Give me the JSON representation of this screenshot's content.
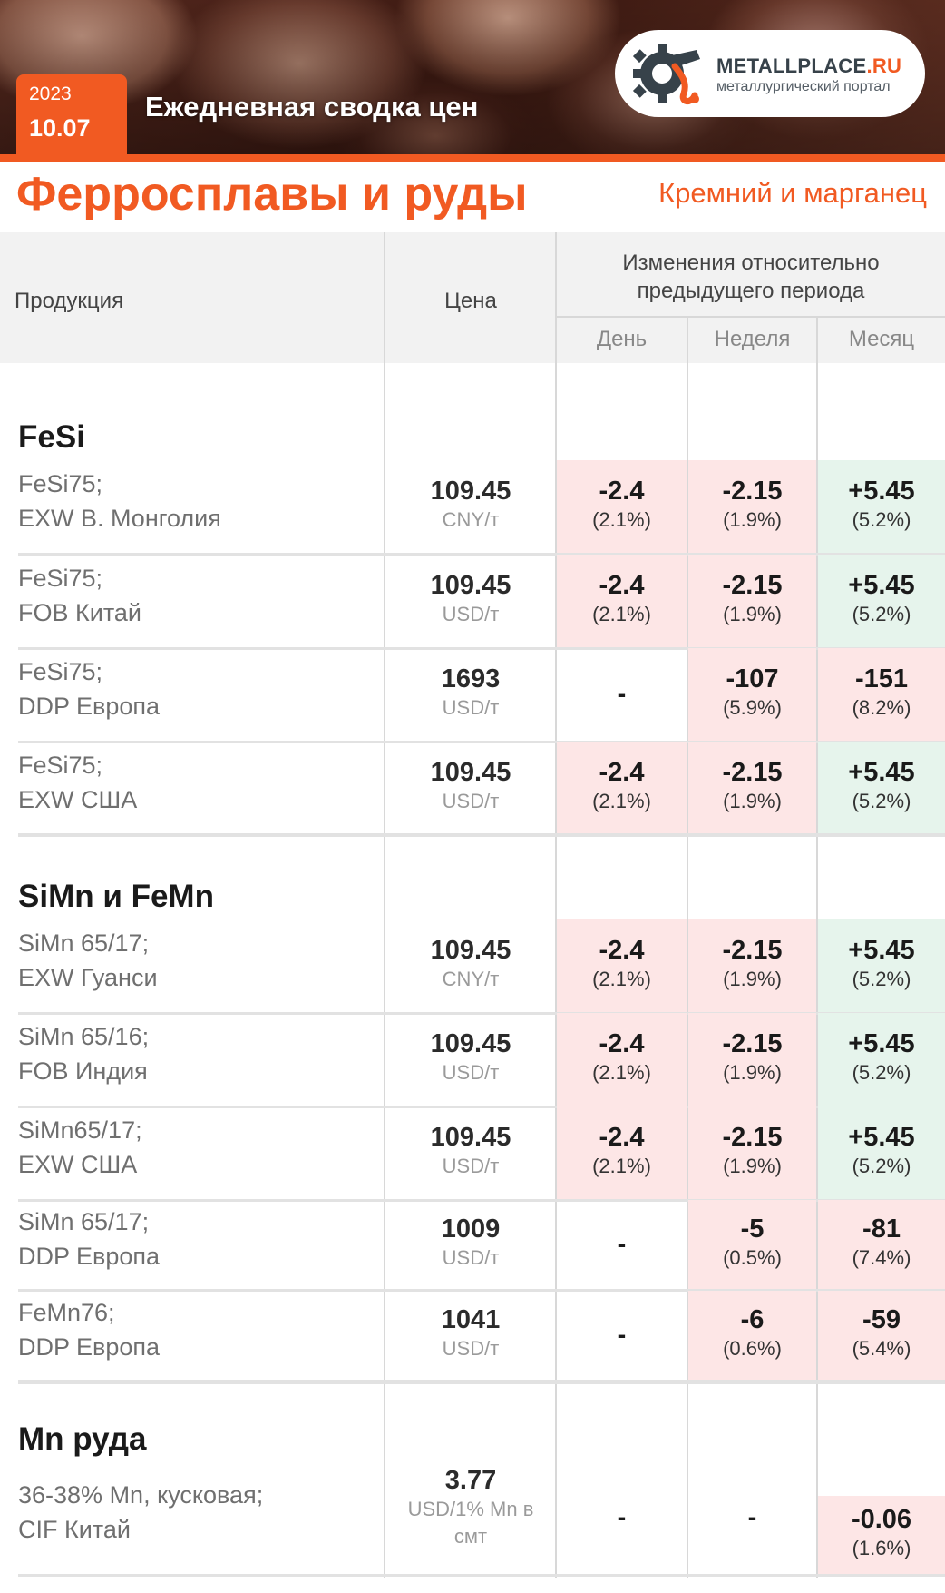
{
  "header": {
    "year": "2023",
    "date": "10.07",
    "title": "Ежедневная сводка цен",
    "logo_name_a": "METALLPLACE",
    "logo_name_b": ".RU",
    "logo_sub": "металлургический портал"
  },
  "section": {
    "title": "Ферросплавы и руды",
    "subtitle": "Кремний и марганец"
  },
  "table_head": {
    "product": "Продукция",
    "price": "Цена",
    "changes_line1": "Изменения относительно",
    "changes_line2": "предыдущего периода",
    "day": "День",
    "week": "Неделя",
    "month": "Месяц"
  },
  "groups": {
    "fesi": "FeSi",
    "simn": "SiMn и FeMn",
    "mn": "Mn руда"
  },
  "rows": [
    {
      "l1": "FeSi75;",
      "l2": "EXW В. Монголия",
      "price": "109.45",
      "unit": "CNY/т",
      "day": "-2.4",
      "day_pct": "(2.1%)",
      "week": "-2.15",
      "week_pct": "(1.9%)",
      "month": "+5.45",
      "month_pct": "(5.2%)"
    },
    {
      "l1": "FeSi75;",
      "l2": "FOB Китай",
      "price": "109.45",
      "unit": "USD/т",
      "day": "-2.4",
      "day_pct": "(2.1%)",
      "week": "-2.15",
      "week_pct": "(1.9%)",
      "month": "+5.45",
      "month_pct": "(5.2%)"
    },
    {
      "l1": "FeSi75;",
      "l2": "DDP Европа",
      "price": "1693",
      "unit": "USD/т",
      "day": "-",
      "week": "-107",
      "week_pct": "(5.9%)",
      "month": "-151",
      "month_pct": "(8.2%)"
    },
    {
      "l1": "FeSi75;",
      "l2": "EXW США",
      "price": "109.45",
      "unit": "USD/т",
      "day": "-2.4",
      "day_pct": "(2.1%)",
      "week": "-2.15",
      "week_pct": "(1.9%)",
      "month": "+5.45",
      "month_pct": "(5.2%)"
    },
    {
      "l1": "SiMn 65/17;",
      "l2": "EXW Гуанси",
      "price": "109.45",
      "unit": "CNY/т",
      "day": "-2.4",
      "day_pct": "(2.1%)",
      "week": "-2.15",
      "week_pct": "(1.9%)",
      "month": "+5.45",
      "month_pct": "(5.2%)"
    },
    {
      "l1": "SiMn 65/16;",
      "l2": "FOB Индия",
      "price": "109.45",
      "unit": "USD/т",
      "day": "-2.4",
      "day_pct": "(2.1%)",
      "week": "-2.15",
      "week_pct": "(1.9%)",
      "month": "+5.45",
      "month_pct": "(5.2%)"
    },
    {
      "l1": "SiMn65/17;",
      "l2": "EXW США",
      "price": "109.45",
      "unit": "USD/т",
      "day": "-2.4",
      "day_pct": "(2.1%)",
      "week": "-2.15",
      "week_pct": "(1.9%)",
      "month": "+5.45",
      "month_pct": "(5.2%)"
    },
    {
      "l1": "SiMn 65/17;",
      "l2": "DDP Европа",
      "price": "1009",
      "unit": "USD/т",
      "day": "-",
      "week": "-5",
      "week_pct": "(0.5%)",
      "month": "-81",
      "month_pct": "(7.4%)"
    },
    {
      "l1": "FeMn76;",
      "l2": "DDP Европа",
      "price": "1041",
      "unit": "USD/т",
      "day": "-",
      "week": "-6",
      "week_pct": "(0.6%)",
      "month": "-59",
      "month_pct": "(5.4%)"
    },
    {
      "l1": "36-38% Mn, кусковая;",
      "l2": "CIF Китай",
      "price": "3.77",
      "unit": "USD/1% Mn в",
      "unit2": "смт",
      "day": "-",
      "week": "-",
      "month": "-0.06",
      "month_pct": "(1.6%)"
    }
  ],
  "colors": {
    "accent": "#f15a22",
    "neg_bg": "#fde6e6",
    "pos_bg": "#e6f4ec",
    "head_bg": "#f2f2f2"
  }
}
